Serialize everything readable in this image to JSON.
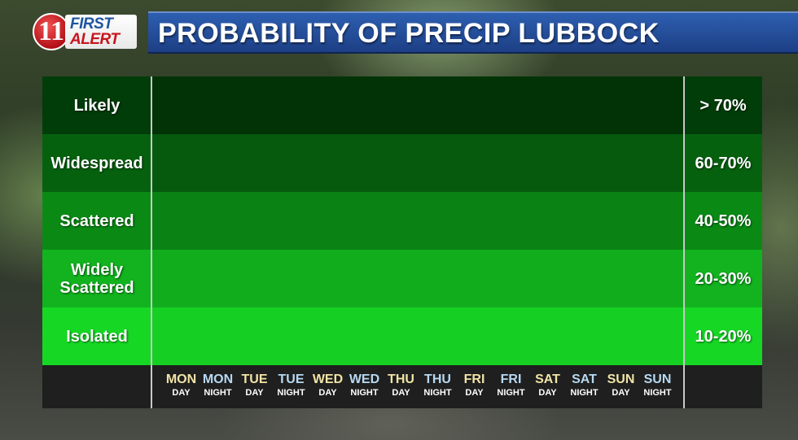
{
  "logo": {
    "numeral": "11",
    "line1": "FIRST",
    "line2": "ALERT"
  },
  "title": "PROBABILITY OF PRECIP LUBBOCK",
  "categories": [
    {
      "label": "Likely",
      "range": "> 70%",
      "color": "#003d08"
    },
    {
      "label": "Widespread",
      "range": "60-70%",
      "color": "#06610f"
    },
    {
      "label": "Scattered",
      "range": "40-50%",
      "color": "#0a8a15"
    },
    {
      "label": "Widely Scattered",
      "range": "20-30%",
      "color": "#12b31f"
    },
    {
      "label": "Isolated",
      "range": "10-20%",
      "color": "#16d824"
    }
  ],
  "periods": [
    {
      "day": "MON",
      "period": "DAY"
    },
    {
      "day": "MON",
      "period": "NIGHT"
    },
    {
      "day": "TUE",
      "period": "DAY"
    },
    {
      "day": "TUE",
      "period": "NIGHT"
    },
    {
      "day": "WED",
      "period": "DAY"
    },
    {
      "day": "WED",
      "period": "NIGHT"
    },
    {
      "day": "THU",
      "period": "DAY"
    },
    {
      "day": "THU",
      "period": "NIGHT"
    },
    {
      "day": "FRI",
      "period": "DAY"
    },
    {
      "day": "FRI",
      "period": "NIGHT"
    },
    {
      "day": "SAT",
      "period": "DAY"
    },
    {
      "day": "SAT",
      "period": "NIGHT"
    },
    {
      "day": "SUN",
      "period": "DAY"
    },
    {
      "day": "SUN",
      "period": "NIGHT"
    }
  ],
  "colors": {
    "title_bar": "#1d3f85",
    "day_text": "#f1e3a6",
    "night_text": "#b7d8f2",
    "logo_red": "#c8141e",
    "logo_blue": "#1e56a0"
  }
}
